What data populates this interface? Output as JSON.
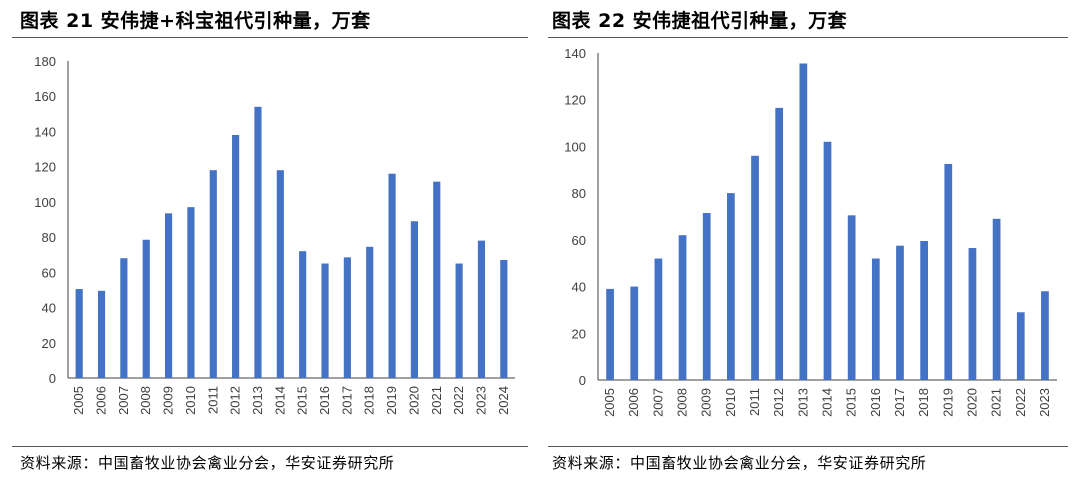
{
  "left": {
    "title": "图表 21 安伟捷+科宝祖代引种量，万套",
    "source": "资料来源：中国畜牧业协会禽业分会，华安证券研究所"
  },
  "right": {
    "title": "图表 22 安伟捷祖代引种量，万套",
    "source": "资料来源：中国畜牧业协会禽业分会，华安证券研究所"
  },
  "chart_data": [
    {
      "type": "bar",
      "title": "图表 21 安伟捷+科宝祖代引种量，万套",
      "categories": [
        "2005",
        "2006",
        "2007",
        "2008",
        "2009",
        "2010",
        "2011",
        "2012",
        "2013",
        "2014",
        "2015",
        "2016",
        "2017",
        "2018",
        "2019",
        "2020",
        "2021",
        "2022",
        "2023",
        "2024"
      ],
      "values": [
        50.5,
        49.5,
        68,
        78.5,
        93.5,
        97,
        118,
        138,
        154,
        118,
        72,
        65,
        68.5,
        74.5,
        116,
        89,
        111.5,
        65,
        78,
        67
      ],
      "ylim": [
        0,
        180
      ],
      "yticks": [
        0,
        20,
        40,
        60,
        80,
        100,
        120,
        140,
        160,
        180
      ],
      "xlabel": "",
      "ylabel": "",
      "grid": false,
      "color": "#4472C4"
    },
    {
      "type": "bar",
      "title": "图表 22 安伟捷祖代引种量，万套",
      "categories": [
        "2005",
        "2006",
        "2007",
        "2008",
        "2009",
        "2010",
        "2011",
        "2012",
        "2013",
        "2014",
        "2015",
        "2016",
        "2017",
        "2018",
        "2019",
        "2020",
        "2021",
        "2022",
        "2023"
      ],
      "values": [
        39,
        40,
        52,
        62,
        71.5,
        80,
        96,
        116.5,
        135.5,
        102,
        70.5,
        52,
        57.5,
        59.5,
        92.5,
        56.5,
        69,
        29,
        38
      ],
      "ylim": [
        0,
        140
      ],
      "yticks": [
        0,
        20,
        40,
        60,
        80,
        100,
        120,
        140
      ],
      "xlabel": "",
      "ylabel": "",
      "grid": false,
      "color": "#4472C4"
    }
  ]
}
